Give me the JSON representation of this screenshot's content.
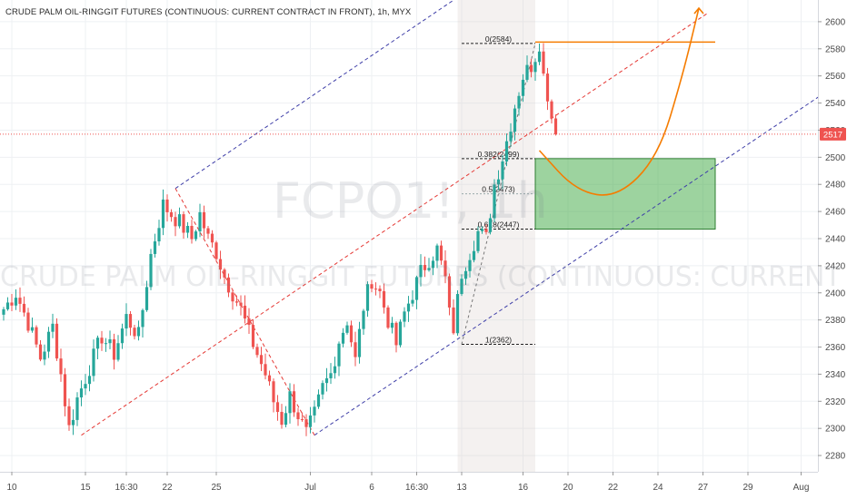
{
  "chart_data": {
    "type": "candlestick",
    "title": "CRUDE PALM OIL-RINGGIT FUTURES (CONTINUOUS: CURRENT CONTRACT IN FRONT), 1h, MYX",
    "watermark_symbol": "FCPO1!, 1h",
    "watermark_name": "CRUDE PALM OIL-RINGGIT FUTURES (CONTINUOUS: CURRENT CONTRACT IN FRONT)",
    "ylim": [
      2268,
      2616
    ],
    "y_ticks": [
      2280,
      2300,
      2320,
      2340,
      2360,
      2380,
      2400,
      2420,
      2440,
      2460,
      2480,
      2500,
      2520,
      2540,
      2560,
      2580,
      2600
    ],
    "x_ticks": [
      {
        "label": "10",
        "idx": 2
      },
      {
        "label": "15",
        "idx": 20
      },
      {
        "label": "16:30",
        "idx": 30
      },
      {
        "label": "22",
        "idx": 40
      },
      {
        "label": "25",
        "idx": 52
      },
      {
        "label": "Jul",
        "idx": 75
      },
      {
        "label": "6",
        "idx": 90
      },
      {
        "label": "16:30",
        "idx": 101
      },
      {
        "label": "13",
        "idx": 112
      },
      {
        "label": "16",
        "idx": 127
      },
      {
        "label": "20",
        "idx": 138
      },
      {
        "label": "22",
        "idx": 149
      },
      {
        "label": "24",
        "idx": 160
      },
      {
        "label": "27",
        "idx": 171
      },
      {
        "label": "29",
        "idx": 182
      },
      {
        "label": "Aug",
        "idx": 195
      }
    ],
    "last_price": {
      "value": 2517,
      "label": "2517",
      "color": "#ef5350"
    },
    "colors": {
      "up": "#26a69a",
      "down": "#ef5350"
    },
    "anchors": [
      [
        0,
        2388
      ],
      [
        3,
        2400
      ],
      [
        6,
        2378
      ],
      [
        9,
        2352
      ],
      [
        12,
        2375
      ],
      [
        14,
        2340
      ],
      [
        16,
        2300
      ],
      [
        18,
        2322
      ],
      [
        21,
        2345
      ],
      [
        24,
        2368
      ],
      [
        27,
        2355
      ],
      [
        30,
        2382
      ],
      [
        33,
        2368
      ],
      [
        36,
        2428
      ],
      [
        39,
        2465
      ],
      [
        41,
        2458
      ],
      [
        43,
        2452
      ],
      [
        46,
        2440
      ],
      [
        48,
        2458
      ],
      [
        50,
        2440
      ],
      [
        52,
        2430
      ],
      [
        54,
        2412
      ],
      [
        56,
        2400
      ],
      [
        58,
        2388
      ],
      [
        60,
        2370
      ],
      [
        62,
        2355
      ],
      [
        64,
        2340
      ],
      [
        66,
        2320
      ],
      [
        68,
        2306
      ],
      [
        70,
        2324
      ],
      [
        72,
        2310
      ],
      [
        74,
        2296
      ],
      [
        76,
        2310
      ],
      [
        78,
        2330
      ],
      [
        80,
        2340
      ],
      [
        82,
        2365
      ],
      [
        84,
        2380
      ],
      [
        86,
        2350
      ],
      [
        88,
        2390
      ],
      [
        90,
        2410
      ],
      [
        92,
        2400
      ],
      [
        94,
        2380
      ],
      [
        96,
        2362
      ],
      [
        98,
        2385
      ],
      [
        100,
        2400
      ],
      [
        102,
        2415
      ],
      [
        104,
        2425
      ],
      [
        106,
        2432
      ],
      [
        108,
        2410
      ],
      [
        109,
        2384
      ],
      [
        110,
        2374
      ],
      [
        112,
        2415
      ],
      [
        114,
        2430
      ],
      [
        116,
        2445
      ],
      [
        118,
        2440
      ],
      [
        120,
        2480
      ],
      [
        122,
        2500
      ],
      [
        123,
        2512
      ],
      [
        125,
        2538
      ],
      [
        127,
        2560
      ],
      [
        129,
        2568
      ],
      [
        130,
        2575
      ],
      [
        131,
        2585
      ],
      [
        132,
        2560
      ],
      [
        133,
        2547
      ],
      [
        134,
        2530
      ],
      [
        135,
        2517
      ]
    ],
    "channel_center": {
      "from": [
        19,
        2295
      ],
      "to": [
        172,
        2606
      ]
    },
    "channel_upper": {
      "from": [
        42,
        2477
      ],
      "to": [
        160,
        2718
      ]
    },
    "channel_lower": {
      "from": [
        76,
        2295
      ],
      "to": [
        200,
        2546
      ]
    },
    "trend_down": {
      "from": [
        42,
        2477
      ],
      "to": [
        76,
        2295
      ]
    },
    "fib_retracement": {
      "levels": [
        {
          "label": "0(2584)",
          "value": 2584
        },
        {
          "label": "0.382(2499)",
          "value": 2499
        },
        {
          "label": "0.5(2473)",
          "value": 2473
        },
        {
          "label": "0.618(2447)",
          "value": 2447
        },
        {
          "label": "1(2362)",
          "value": 2362
        }
      ],
      "x_from": 112,
      "x_to": 130
    },
    "target_zone": {
      "y_from": 2447,
      "y_to": 2499,
      "x_from": 130,
      "x_to": 174,
      "color": "#4caf50"
    },
    "resistance_line": {
      "value": 2585,
      "x_from": 130,
      "x_to": 174,
      "color": "#f57c00"
    },
    "projection_path": {
      "color": "#f57c00",
      "points": [
        [
          131,
          2505
        ],
        [
          140,
          2475
        ],
        [
          150,
          2470
        ],
        [
          160,
          2500
        ],
        [
          166,
          2560
        ],
        [
          170,
          2610
        ]
      ]
    },
    "shaded_session": {
      "x_from": 111,
      "x_to": 130
    }
  }
}
